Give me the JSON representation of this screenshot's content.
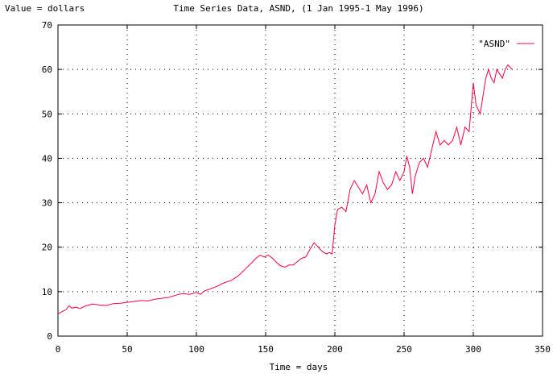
{
  "chart_data": {
    "type": "line",
    "title": "Time Series Data, ASND, (1 Jan 1995-1 May 1996)",
    "ylabel": "Value = dollars",
    "xlabel": "Time = days",
    "xlim": [
      0,
      350
    ],
    "ylim": [
      0,
      70
    ],
    "x_ticks": [
      0,
      50,
      100,
      150,
      200,
      250,
      300,
      350
    ],
    "y_ticks": [
      0,
      10,
      20,
      30,
      40,
      50,
      60,
      70
    ],
    "grid": true,
    "legend_position": "top-right",
    "series": [
      {
        "name": "\"ASND\"",
        "color": "#ff0040",
        "x": [
          0,
          3,
          6,
          8,
          10,
          13,
          16,
          20,
          25,
          30,
          35,
          40,
          45,
          50,
          55,
          60,
          65,
          70,
          75,
          80,
          85,
          90,
          95,
          100,
          103,
          106,
          110,
          115,
          120,
          125,
          130,
          135,
          140,
          143,
          146,
          149,
          152,
          155,
          158,
          161,
          164,
          167,
          170,
          173,
          176,
          179,
          182,
          185,
          188,
          191,
          194,
          196,
          198,
          200,
          202,
          205,
          208,
          211,
          214,
          217,
          220,
          223,
          226,
          229,
          232,
          235,
          238,
          241,
          244,
          247,
          250,
          252,
          254,
          256,
          258,
          261,
          264,
          267,
          270,
          273,
          276,
          279,
          282,
          285,
          288,
          291,
          294,
          297,
          300,
          302,
          305,
          307,
          309,
          311,
          313,
          315,
          317,
          319,
          321,
          323,
          325,
          328
        ],
        "values": [
          5,
          5.5,
          6,
          6.8,
          6.3,
          6.5,
          6.2,
          6.8,
          7.2,
          7,
          6.9,
          7.3,
          7.4,
          7.6,
          7.8,
          8,
          7.9,
          8.3,
          8.5,
          8.7,
          9.2,
          9.6,
          9.4,
          9.8,
          9.4,
          10.2,
          10.6,
          11.2,
          12,
          12.5,
          13.5,
          15,
          16.5,
          17.5,
          18.2,
          17.8,
          18.2,
          17.5,
          16.5,
          15.8,
          15.5,
          16,
          16,
          16.8,
          17.5,
          17.8,
          19.5,
          21,
          20,
          19,
          18.5,
          18.8,
          18.5,
          25,
          28.5,
          29,
          28,
          33,
          35,
          33.5,
          32,
          34,
          30,
          32,
          37,
          34.5,
          33,
          34,
          37,
          35,
          37,
          40.5,
          38,
          32,
          36,
          39,
          40,
          38,
          42,
          46,
          43,
          44,
          43,
          44,
          47,
          43,
          47,
          46,
          57,
          52,
          50,
          54,
          58,
          60,
          58,
          57,
          60,
          59,
          58,
          60,
          61,
          60
        ]
      }
    ]
  }
}
